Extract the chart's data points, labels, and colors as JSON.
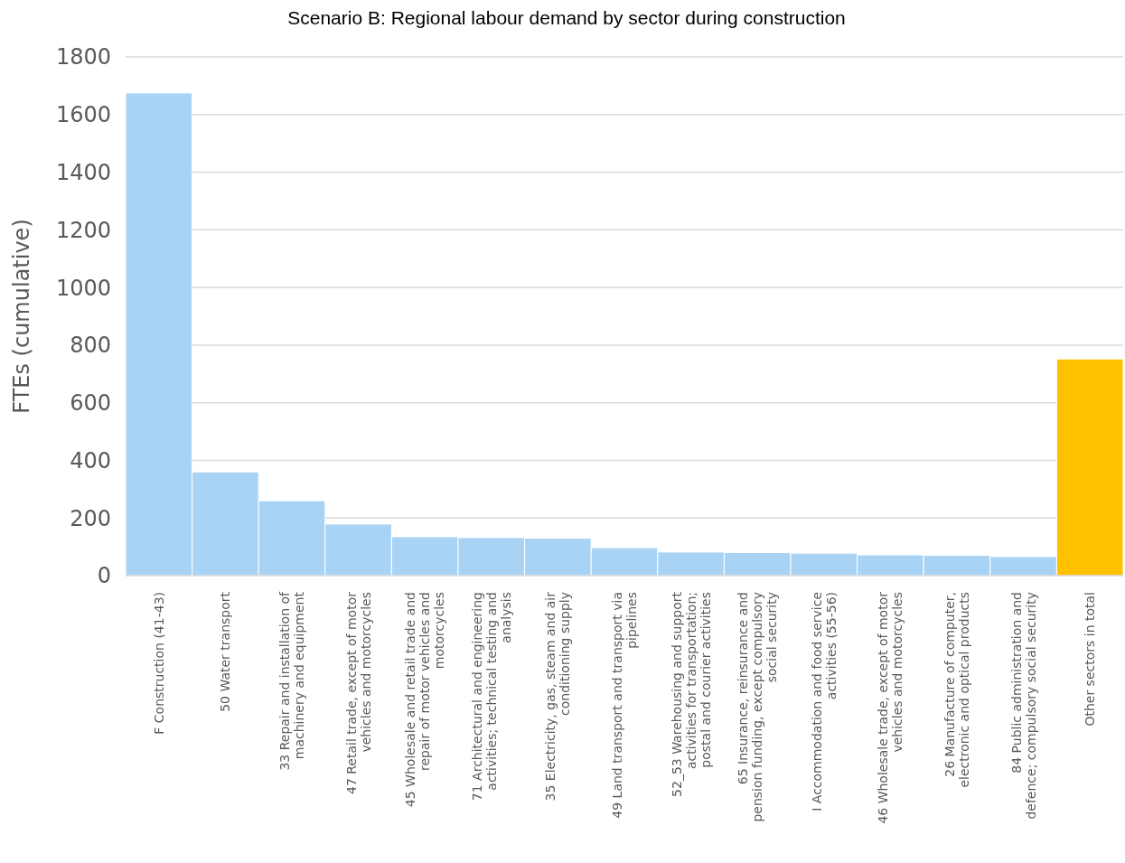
{
  "chart_data": {
    "type": "bar",
    "title": "Scenario B: Regional labour demand by sector during construction",
    "ylabel": "FTEs (cumulative)",
    "categories": [
      "F Construction (41-43)",
      "50 Water transport",
      "33 Repair and installation of machinery and equipment",
      "47 Retail trade, except of motor vehicles and motorcycles",
      "45 Wholesale and retail trade and repair of motor vehicles and motorcycles",
      "71 Architectural and engineering activities; technical testing and analysis",
      "35 Electricity, gas, steam and air conditioning supply",
      "49 Land transport and transport via pipelines",
      "52_53 Warehousing and support activities for transportation; postal and courier activities",
      "65 Insurance, reinsurance and pension funding, except compulsory social security",
      "I Accommodation and food service activities (55-56)",
      "46 Wholesale trade, except of motor vehicles and motorcycles",
      "26 Manufacture of computer, electronic and optical products",
      "84 Public administration and defence; compulsory social security",
      "Other sectors in total"
    ],
    "values": [
      1675,
      360,
      260,
      179,
      135,
      132,
      130,
      97,
      82,
      80,
      78,
      72,
      70,
      66,
      752
    ],
    "colors": [
      "#a9d3f5",
      "#a9d3f5",
      "#a9d3f5",
      "#a9d3f5",
      "#a9d3f5",
      "#a9d3f5",
      "#a9d3f5",
      "#a9d3f5",
      "#a9d3f5",
      "#a9d3f5",
      "#a9d3f5",
      "#a9d3f5",
      "#a9d3f5",
      "#a9d3f5",
      "#ffc000"
    ],
    "ylim": [
      0,
      1800
    ],
    "yticks": [
      0,
      200,
      400,
      600,
      800,
      1000,
      1200,
      1400,
      1600,
      1800
    ],
    "grid": "y"
  }
}
